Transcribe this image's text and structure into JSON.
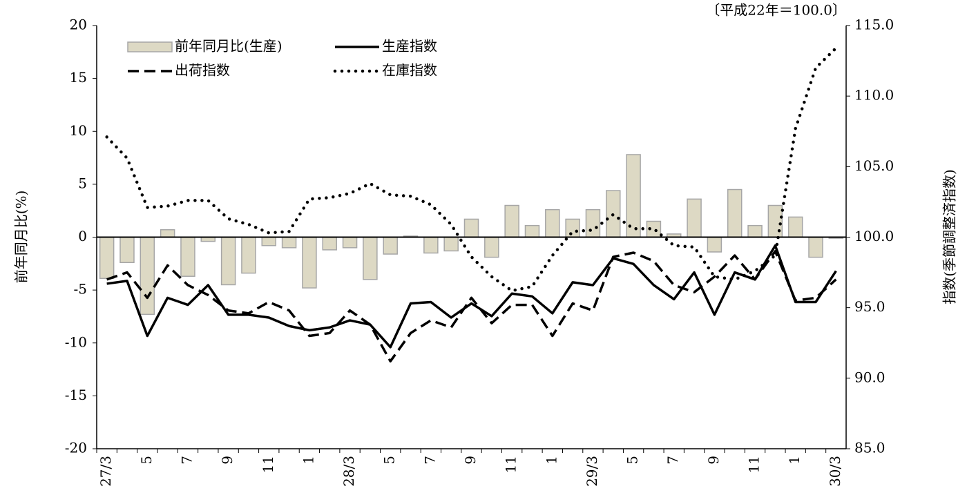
{
  "chart_data": {
    "type": "bar",
    "annotation": "〔平成22年＝100.0〕",
    "ylabel": "前年同月比(%)",
    "y2label": "指数(季節調整済指数)",
    "categories": [
      "27/3",
      null,
      "5",
      null,
      "7",
      null,
      "9",
      null,
      "11",
      null,
      "1",
      null,
      "28/3",
      null,
      "5",
      null,
      "7",
      null,
      "9",
      null,
      "11",
      null,
      "1",
      null,
      "29/3",
      null,
      "5",
      null,
      "7",
      null,
      "9",
      null,
      "11",
      null,
      "1",
      null,
      "30/3"
    ],
    "ylim": [
      -20,
      20
    ],
    "yticks": [
      -20,
      -15,
      -10,
      -5,
      0,
      5,
      10,
      15,
      20
    ],
    "y2lim": [
      85,
      115
    ],
    "y2ticks": [
      {
        "value": 85,
        "label": "85.0"
      },
      {
        "value": 90,
        "label": "90.0"
      },
      {
        "value": 95,
        "label": "95.0"
      },
      {
        "value": 100,
        "label": "100.0"
      },
      {
        "value": 105,
        "label": "105.0"
      },
      {
        "value": 110,
        "label": "110.0"
      },
      {
        "value": 115,
        "label": "115.0"
      }
    ],
    "grid": false,
    "series": [
      {
        "name": "前年同月比(生産)",
        "type": "bar",
        "color": "#ddd9c4",
        "values": [
          -3.9,
          -2.4,
          -7.3,
          0.7,
          -3.7,
          -0.4,
          -4.5,
          -3.4,
          -0.8,
          -1.0,
          -4.8,
          -1.2,
          -1.0,
          -4.0,
          -1.6,
          0.1,
          -1.5,
          -1.3,
          1.7,
          -1.9,
          3.0,
          1.1,
          2.6,
          1.7,
          2.6,
          4.4,
          7.8,
          1.5,
          0.3,
          3.6,
          -1.4,
          4.5,
          1.1,
          3.0,
          1.9,
          -1.9,
          -0.1
        ]
      },
      {
        "name": "生産指数",
        "type": "line",
        "axis": "y2",
        "style": "solid",
        "color": "#000000",
        "values": [
          96.7,
          96.9,
          93.0,
          95.7,
          95.2,
          96.6,
          94.5,
          94.5,
          94.3,
          93.7,
          93.4,
          93.6,
          94.1,
          93.8,
          92.2,
          95.3,
          95.4,
          94.3,
          95.3,
          94.4,
          96.0,
          95.8,
          94.6,
          96.8,
          96.6,
          98.5,
          98.1,
          96.6,
          95.6,
          97.5,
          94.5,
          97.5,
          97.0,
          99.4,
          95.4,
          95.4,
          97.6
        ]
      },
      {
        "name": "出荷指数",
        "type": "line",
        "axis": "y2",
        "style": "dashed",
        "color": "#000000",
        "values": [
          97.0,
          97.5,
          95.7,
          98.0,
          96.6,
          95.9,
          94.8,
          94.6,
          95.4,
          94.8,
          93.0,
          93.2,
          94.8,
          93.8,
          91.2,
          93.2,
          94.1,
          93.6,
          95.7,
          93.9,
          95.2,
          95.2,
          93.0,
          95.3,
          94.8,
          98.6,
          98.9,
          98.3,
          96.6,
          96.1,
          97.2,
          98.7,
          97.0,
          99.0,
          95.5,
          95.7,
          97.0
        ]
      },
      {
        "name": "在庫指数",
        "type": "line",
        "axis": "y2",
        "style": "dotted",
        "color": "#000000",
        "values": [
          107.1,
          105.6,
          102.1,
          102.2,
          102.6,
          102.6,
          101.3,
          100.9,
          100.3,
          100.4,
          102.7,
          102.8,
          103.1,
          103.8,
          103.0,
          102.9,
          102.3,
          100.9,
          98.6,
          97.2,
          96.2,
          96.5,
          98.7,
          100.4,
          100.5,
          101.6,
          100.6,
          100.6,
          99.4,
          99.3,
          97.2,
          97.0,
          97.6,
          98.7,
          107.7,
          112.0,
          113.4
        ]
      }
    ]
  }
}
